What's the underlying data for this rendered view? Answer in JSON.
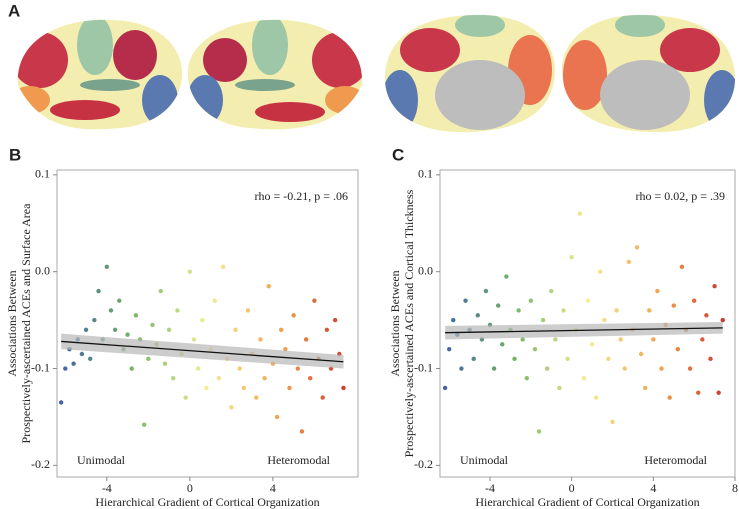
{
  "figure": {
    "panel_label": "A"
  },
  "chart_data": [
    {
      "type": "scatter",
      "panel_label": "B",
      "x_label": "Hierarchical Gradient of Cortical Organization",
      "y_label": [
        "Associations Between",
        "Prospectively-ascertained ACEs and Surface Area"
      ],
      "annotation": "rho = -0.21, p = .06",
      "left_label": "Unimodal",
      "right_label": "Heteromodal",
      "left_label_color": "#3b4fa0",
      "right_label_color": "#b02a2a",
      "xlim": [
        -6.4,
        8.1
      ],
      "ylim": [
        -0.212,
        0.105
      ],
      "xticks": [
        -4,
        0,
        4
      ],
      "yticks": [
        0.1,
        {
          "value": 0,
          "label": "0.0"
        },
        -0.1,
        -0.2
      ],
      "colormap": [
        "#3e5ea8",
        "#74b566",
        "#f3ee96",
        "#f2a04c",
        "#c3282b"
      ],
      "x": [
        -6.2,
        -6,
        -5.8,
        -5.6,
        -5.4,
        -5.2,
        -5,
        -4.8,
        -4.6,
        -4.4,
        -4.2,
        -4,
        -3.8,
        -3.6,
        -3.4,
        -3.2,
        -3,
        -2.8,
        -2.6,
        -2.4,
        -2.2,
        -2,
        -1.8,
        -1.6,
        -1.4,
        -1.2,
        -1,
        -0.8,
        -0.6,
        -0.4,
        -0.2,
        0,
        0.2,
        0.4,
        0.6,
        0.8,
        1,
        1.2,
        1.4,
        1.6,
        1.8,
        2,
        2.2,
        2.4,
        2.6,
        2.8,
        3,
        3.2,
        3.4,
        3.6,
        3.8,
        4,
        4.2,
        4.4,
        4.6,
        4.8,
        5,
        5.2,
        5.4,
        5.6,
        5.8,
        6,
        6.2,
        6.4,
        6.6,
        6.8,
        7,
        7.2,
        7.4
      ],
      "y": [
        -0.135,
        -0.1,
        -0.08,
        -0.095,
        -0.07,
        -0.085,
        -0.06,
        -0.09,
        -0.05,
        -0.02,
        -0.07,
        0.005,
        -0.04,
        -0.06,
        -0.03,
        -0.08,
        -0.065,
        -0.1,
        -0.045,
        -0.07,
        -0.158,
        -0.09,
        -0.055,
        -0.075,
        -0.02,
        -0.095,
        -0.06,
        -0.11,
        -0.04,
        -0.085,
        -0.13,
        0,
        -0.07,
        -0.1,
        -0.05,
        -0.12,
        -0.08,
        -0.03,
        -0.11,
        0.005,
        -0.09,
        -0.14,
        -0.06,
        -0.1,
        -0.12,
        -0.04,
        -0.085,
        -0.13,
        -0.07,
        -0.11,
        -0.015,
        -0.095,
        -0.15,
        -0.06,
        -0.08,
        -0.12,
        -0.045,
        -0.1,
        -0.165,
        -0.07,
        -0.11,
        -0.03,
        -0.09,
        -0.13,
        -0.06,
        -0.1,
        -0.05,
        -0.085,
        -0.12
      ],
      "trend": {
        "x": [
          -6.2,
          7.4
        ],
        "y": [
          -0.072,
          -0.093
        ],
        "ci": [
          0.008,
          0.007
        ],
        "color": "#111111",
        "band_color": "#b8b8b8"
      }
    },
    {
      "type": "scatter",
      "panel_label": "C",
      "x_label": "Hierarchical Gradient of Cortical Organization",
      "y_label": [
        "Associations Between",
        "Prospectively-ascertained ACEs and Cortical Thickness"
      ],
      "annotation": "rho = 0.02, p = .39",
      "left_label": "Unimodal",
      "right_label": "Heteromodal",
      "left_label_color": "#3b4fa0",
      "right_label_color": "#b02a2a",
      "xlim": [
        -6.45,
        8
      ],
      "ylim": [
        -0.212,
        0.105
      ],
      "xticks": [
        -4,
        0,
        4,
        8
      ],
      "yticks": [
        0.1,
        {
          "value": 0,
          "label": "0.0"
        },
        -0.1,
        -0.2
      ],
      "colormap": [
        "#3e5ea8",
        "#74b566",
        "#f3ee96",
        "#f2a04c",
        "#c3282b"
      ],
      "x": [
        -6.2,
        -6,
        -5.8,
        -5.6,
        -5.4,
        -5.2,
        -5,
        -4.8,
        -4.6,
        -4.4,
        -4.2,
        -4,
        -3.8,
        -3.6,
        -3.4,
        -3.2,
        -3,
        -2.8,
        -2.6,
        -2.4,
        -2.2,
        -2,
        -1.8,
        -1.6,
        -1.4,
        -1.2,
        -1,
        -0.8,
        -0.6,
        -0.4,
        -0.2,
        0,
        0.2,
        0.4,
        0.6,
        0.8,
        1,
        1.2,
        1.4,
        1.6,
        1.8,
        2,
        2.2,
        2.4,
        2.6,
        2.8,
        3,
        3.2,
        3.4,
        3.6,
        3.8,
        4,
        4.2,
        4.4,
        4.6,
        4.8,
        5,
        5.2,
        5.4,
        5.6,
        5.8,
        6,
        6.2,
        6.4,
        6.6,
        6.8,
        7,
        7.2,
        7.4
      ],
      "y": [
        -0.12,
        -0.08,
        -0.05,
        -0.065,
        -0.1,
        -0.03,
        -0.06,
        -0.09,
        -0.045,
        -0.07,
        -0.02,
        -0.055,
        -0.1,
        -0.035,
        -0.075,
        -0.005,
        -0.06,
        -0.09,
        -0.04,
        -0.07,
        -0.11,
        -0.03,
        -0.08,
        -0.165,
        -0.05,
        -0.1,
        -0.02,
        -0.07,
        -0.12,
        -0.04,
        -0.09,
        0.015,
        -0.06,
        0.06,
        -0.11,
        -0.03,
        -0.075,
        -0.13,
        0,
        -0.05,
        -0.09,
        -0.155,
        -0.04,
        -0.07,
        -0.1,
        0.01,
        -0.06,
        0.025,
        -0.085,
        -0.12,
        -0.04,
        -0.07,
        -0.02,
        -0.1,
        -0.055,
        -0.13,
        -0.035,
        -0.08,
        0.005,
        -0.06,
        -0.1,
        -0.03,
        -0.125,
        -0.07,
        -0.045,
        -0.09,
        -0.015,
        -0.125,
        -0.05
      ],
      "trend": {
        "x": [
          -6.2,
          7.4
        ],
        "y": [
          -0.063,
          -0.058
        ],
        "ci": [
          0.007,
          0.006
        ],
        "color": "#111111",
        "band_color": "#b8b8b8"
      }
    }
  ]
}
